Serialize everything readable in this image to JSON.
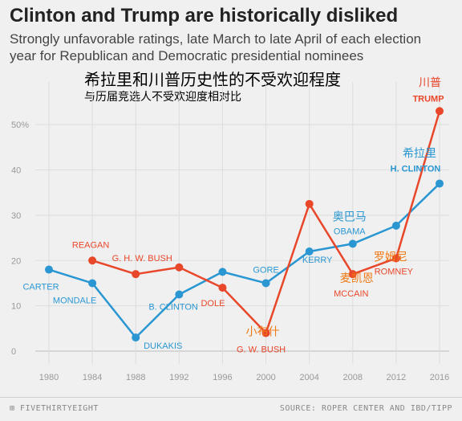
{
  "header": {
    "title": "Clinton and Trump are historically disliked",
    "subtitle": "Strongly unfavorable ratings, late March to late April of each election year for Republican and Democratic presidential nominees",
    "cn_title": "希拉里和川普历史性的不受欢迎程度",
    "cn_subtitle": "与历届竞选人不受欢迎度相对比"
  },
  "footer": {
    "brand": "FIVETHIRTYEIGHT",
    "source": "SOURCE: ROPER CENTER AND IBD/TIPP"
  },
  "colors": {
    "republican": "#e8472a",
    "democrat": "#2a97d2",
    "axis_text": "#999999",
    "grid": "#dddddd",
    "cn_annotation": "#f07a16"
  },
  "chart_data": {
    "type": "line",
    "x": [
      1980,
      1984,
      1988,
      1992,
      1996,
      2000,
      2004,
      2008,
      2012,
      2016
    ],
    "ylim": [
      0,
      55
    ],
    "yticks": [
      "0",
      "10",
      "20",
      "30",
      "40",
      "50%"
    ],
    "ytick_values": [
      0,
      10,
      20,
      30,
      40,
      50
    ],
    "xticks": [
      "1980",
      "1984",
      "1988",
      "1992",
      "1996",
      "2000",
      "2004",
      "2008",
      "2012",
      "2016"
    ],
    "grid": true,
    "series": [
      {
        "key": "democrat",
        "values": [
          18,
          15,
          3,
          12.5,
          17.5,
          15,
          22,
          23.7,
          27.7,
          37
        ]
      },
      {
        "key": "republican",
        "values": [
          null,
          20,
          17,
          18.5,
          14,
          4,
          32.5,
          17,
          20.5,
          53
        ]
      }
    ],
    "labels": [
      {
        "text": "CARTER",
        "series": "democrat",
        "index": 0
      },
      {
        "text": "MONDALE",
        "series": "democrat",
        "index": 1
      },
      {
        "text": "DUKAKIS",
        "series": "democrat",
        "index": 2
      },
      {
        "text": "B. CLINTON",
        "series": "democrat",
        "index": 3
      },
      {
        "text": "GORE",
        "series": "democrat",
        "index": 5
      },
      {
        "text": "KERRY",
        "series": "democrat",
        "index": 6
      },
      {
        "text": "OBAMA",
        "series": "democrat",
        "index": 7
      },
      {
        "text": "H. CLINTON",
        "series": "democrat",
        "index": 9
      },
      {
        "text": "REAGAN",
        "series": "republican",
        "index": 1
      },
      {
        "text": "G. H. W. BUSH",
        "series": "republican",
        "index": 2
      },
      {
        "text": "DOLE",
        "series": "republican",
        "index": 4
      },
      {
        "text": "G. W. BUSH",
        "series": "republican",
        "index": 5
      },
      {
        "text": "MCCAIN",
        "series": "republican",
        "index": 7
      },
      {
        "text": "ROMNEY",
        "series": "republican",
        "index": 8
      },
      {
        "text": "TRUMP",
        "series": "republican",
        "index": 9
      }
    ],
    "cn_labels": [
      {
        "text": "川普",
        "series": "republican",
        "index": 9
      },
      {
        "text": "希拉里",
        "series": "democrat",
        "index": 9
      },
      {
        "text": "奥巴马",
        "series": "democrat",
        "index": 7
      },
      {
        "text": "罗姆尼",
        "series": "republican",
        "index": 8
      },
      {
        "text": "麦凯恩",
        "series": "republican",
        "index": 7
      },
      {
        "text": "小布什",
        "series": "republican",
        "index": 5
      }
    ]
  }
}
